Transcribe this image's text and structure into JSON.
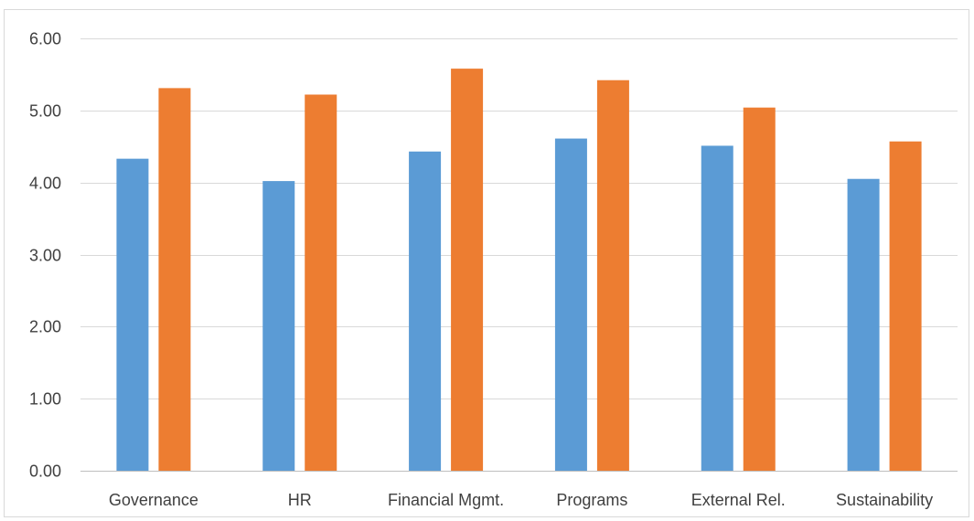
{
  "chart_data": {
    "type": "bar",
    "categories": [
      "Governance",
      "HR",
      "Financial Mgmt.",
      "Programs",
      "External Rel.",
      "Sustainability"
    ],
    "series": [
      {
        "values": [
          4.33,
          4.02,
          4.43,
          4.61,
          4.51,
          4.05
        ],
        "color": "#5b9bd5"
      },
      {
        "values": [
          5.31,
          5.22,
          5.58,
          5.42,
          5.04,
          4.57
        ],
        "color": "#ed7d31"
      }
    ],
    "ylim": [
      0,
      6
    ],
    "yticks": [
      "0.00",
      "1.00",
      "2.00",
      "3.00",
      "4.00",
      "5.00",
      "6.00"
    ],
    "grid": true,
    "legend": "none"
  }
}
